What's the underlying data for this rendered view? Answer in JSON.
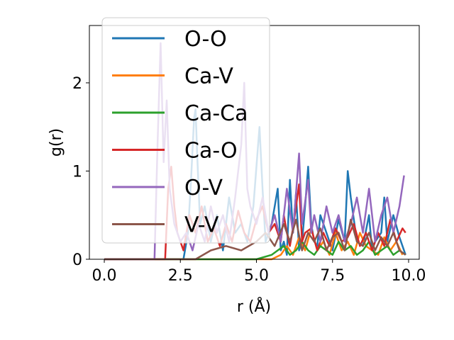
{
  "chart_data": {
    "type": "line",
    "xlabel": "r (Å)",
    "ylabel": "g(r)",
    "xlim": [
      -0.49,
      10.35
    ],
    "ylim": [
      0,
      2.65
    ],
    "xticks": [
      "0.0",
      "2.5",
      "5.0",
      "7.5",
      "10.0"
    ],
    "yticks": [
      "0",
      "1",
      "2"
    ],
    "grid": false,
    "legend_position": "top-left",
    "series": [
      {
        "name": "O-O",
        "color": "#1f77b4",
        "x": [
          0,
          1,
          2,
          2.6,
          2.75,
          2.85,
          2.95,
          3.0,
          3.05,
          3.15,
          3.3,
          3.5,
          3.7,
          3.9,
          4.1,
          4.3,
          4.5,
          4.7,
          4.9,
          5.1,
          5.2,
          5.3,
          5.5,
          5.7,
          5.8,
          5.9,
          6.0,
          6.1,
          6.2,
          6.3,
          6.4,
          6.5,
          6.6,
          6.7,
          6.8,
          6.9,
          7.0,
          7.1,
          7.3,
          7.5,
          7.7,
          7.9,
          8.0,
          8.1,
          8.3,
          8.5,
          8.7,
          8.8,
          8.9,
          9.1,
          9.2,
          9.3,
          9.5,
          9.7,
          9.9
        ],
        "y": [
          0,
          0,
          0,
          0,
          0.3,
          0.9,
          1.6,
          1.7,
          1.2,
          0.4,
          0.6,
          0.2,
          0.5,
          0.1,
          0.7,
          0.3,
          0.4,
          0.2,
          0.6,
          1.5,
          0.8,
          0.2,
          0.4,
          0.8,
          0.1,
          0.2,
          0.05,
          0.9,
          0.3,
          0.75,
          0.1,
          0.2,
          0.6,
          1.05,
          0.4,
          0.2,
          0.15,
          0.5,
          0.3,
          0.1,
          0.45,
          0.2,
          1.0,
          0.7,
          0.2,
          0.15,
          0.5,
          0.1,
          0.2,
          0.3,
          0.7,
          0.2,
          0.5,
          0.25,
          0.05
        ]
      },
      {
        "name": "Ca-V",
        "color": "#ff7f0e",
        "x": [
          0,
          2,
          3,
          4,
          5,
          5.5,
          5.8,
          6.0,
          6.2,
          6.4,
          6.6,
          6.8,
          7.0,
          7.2,
          7.4,
          7.6,
          7.8,
          8.0,
          8.2,
          8.4,
          8.6,
          8.8,
          9.0,
          9.2,
          9.4,
          9.6,
          9.8
        ],
        "y": [
          0,
          0,
          0,
          0,
          0,
          0,
          0.05,
          0.15,
          0.05,
          0.25,
          0.1,
          0.35,
          0.1,
          0.2,
          0.05,
          0.3,
          0.1,
          0.2,
          0.05,
          0.3,
          0.15,
          0.1,
          0.05,
          0.25,
          0.1,
          0.2,
          0.05
        ]
      },
      {
        "name": "Ca-Ca",
        "color": "#2ca02c",
        "x": [
          0,
          2,
          3,
          4,
          5,
          5.5,
          5.7,
          5.9,
          6.1,
          6.3,
          6.5,
          6.7,
          6.9,
          7.1,
          7.3,
          7.5,
          7.7,
          7.9,
          8.1,
          8.3,
          8.5,
          8.7,
          8.9,
          9.1,
          9.3,
          9.5,
          9.7,
          9.9
        ],
        "y": [
          0,
          0,
          0,
          0,
          0,
          0.05,
          0.1,
          0.15,
          0.05,
          0.1,
          0.2,
          0.1,
          0.05,
          0.15,
          0.1,
          0.05,
          0.2,
          0.1,
          0.15,
          0.05,
          0.1,
          0.2,
          0.05,
          0.1,
          0.15,
          0.05,
          0.1,
          0.05
        ]
      },
      {
        "name": "Ca-O",
        "color": "#d62728",
        "x": [
          0,
          1.5,
          2.0,
          2.1,
          2.2,
          2.3,
          2.4,
          2.6,
          2.8,
          3.0,
          3.2,
          3.4,
          3.6,
          3.8,
          4.0,
          4.2,
          4.4,
          4.6,
          4.8,
          5.0,
          5.2,
          5.4,
          5.6,
          5.8,
          5.9,
          6.0,
          6.1,
          6.2,
          6.4,
          6.5,
          6.6,
          6.8,
          7.0,
          7.2,
          7.4,
          7.6,
          7.8,
          8.0,
          8.2,
          8.4,
          8.6,
          8.8,
          9.0,
          9.2,
          9.4,
          9.6,
          9.8,
          9.9
        ],
        "y": [
          0,
          0,
          0,
          0.8,
          1.05,
          0.6,
          0.3,
          0.1,
          0.5,
          0.3,
          0.6,
          0.2,
          0.35,
          0.15,
          0.4,
          0.2,
          0.55,
          0.3,
          0.2,
          0.45,
          0.6,
          0.3,
          0.4,
          0.2,
          0.5,
          0.3,
          0.15,
          0.35,
          0.85,
          0.2,
          0.3,
          0.35,
          0.1,
          0.3,
          0.15,
          0.35,
          0.2,
          0.25,
          0.4,
          0.15,
          0.3,
          0.1,
          0.3,
          0.15,
          0.45,
          0.2,
          0.35,
          0.3
        ]
      },
      {
        "name": "O-V",
        "color": "#9467bd",
        "x": [
          0,
          1.5,
          1.65,
          1.75,
          1.85,
          1.95,
          2.05,
          2.15,
          2.3,
          2.5,
          2.7,
          2.9,
          3.1,
          3.3,
          3.5,
          3.7,
          3.9,
          4.1,
          4.3,
          4.5,
          4.6,
          4.7,
          4.8,
          5.0,
          5.2,
          5.4,
          5.6,
          5.8,
          6.0,
          6.2,
          6.4,
          6.5,
          6.7,
          6.8,
          6.9,
          7.1,
          7.3,
          7.5,
          7.7,
          7.9,
          8.1,
          8.3,
          8.5,
          8.7,
          8.9,
          9.1,
          9.3,
          9.5,
          9.7,
          9.85
        ],
        "y": [
          0,
          0,
          0,
          1.3,
          2.45,
          1.1,
          1.8,
          0.8,
          0.4,
          0.2,
          0.3,
          0.1,
          0.4,
          0.2,
          0.6,
          0.3,
          0.5,
          0.2,
          0.7,
          1.3,
          2.0,
          0.8,
          0.6,
          0.4,
          0.7,
          0.3,
          0.5,
          0.2,
          0.8,
          0.3,
          1.2,
          0.4,
          0.9,
          0.3,
          0.5,
          0.2,
          0.6,
          0.3,
          0.5,
          0.2,
          0.4,
          0.7,
          0.3,
          0.8,
          0.2,
          0.5,
          0.7,
          0.3,
          0.6,
          0.95
        ]
      },
      {
        "name": "V-V",
        "color": "#8c564b",
        "x": [
          0,
          2,
          3,
          3.5,
          4,
          4.5,
          5.0,
          5.3,
          5.6,
          5.9,
          6.1,
          6.3,
          6.5,
          6.7,
          6.9,
          7.1,
          7.3,
          7.5,
          7.7,
          7.9,
          8.1,
          8.3,
          8.5,
          8.7,
          8.9,
          9.1,
          9.3,
          9.5,
          9.7,
          9.9
        ],
        "y": [
          0,
          0,
          0,
          0.1,
          0.15,
          0.1,
          0.2,
          0.3,
          0.15,
          0.4,
          0.2,
          0.45,
          0.1,
          0.3,
          0.2,
          0.35,
          0.1,
          0.25,
          0.3,
          0.1,
          0.45,
          0.2,
          0.15,
          0.3,
          0.1,
          0.25,
          0.15,
          0.3,
          0.1,
          0.05
        ]
      }
    ]
  }
}
